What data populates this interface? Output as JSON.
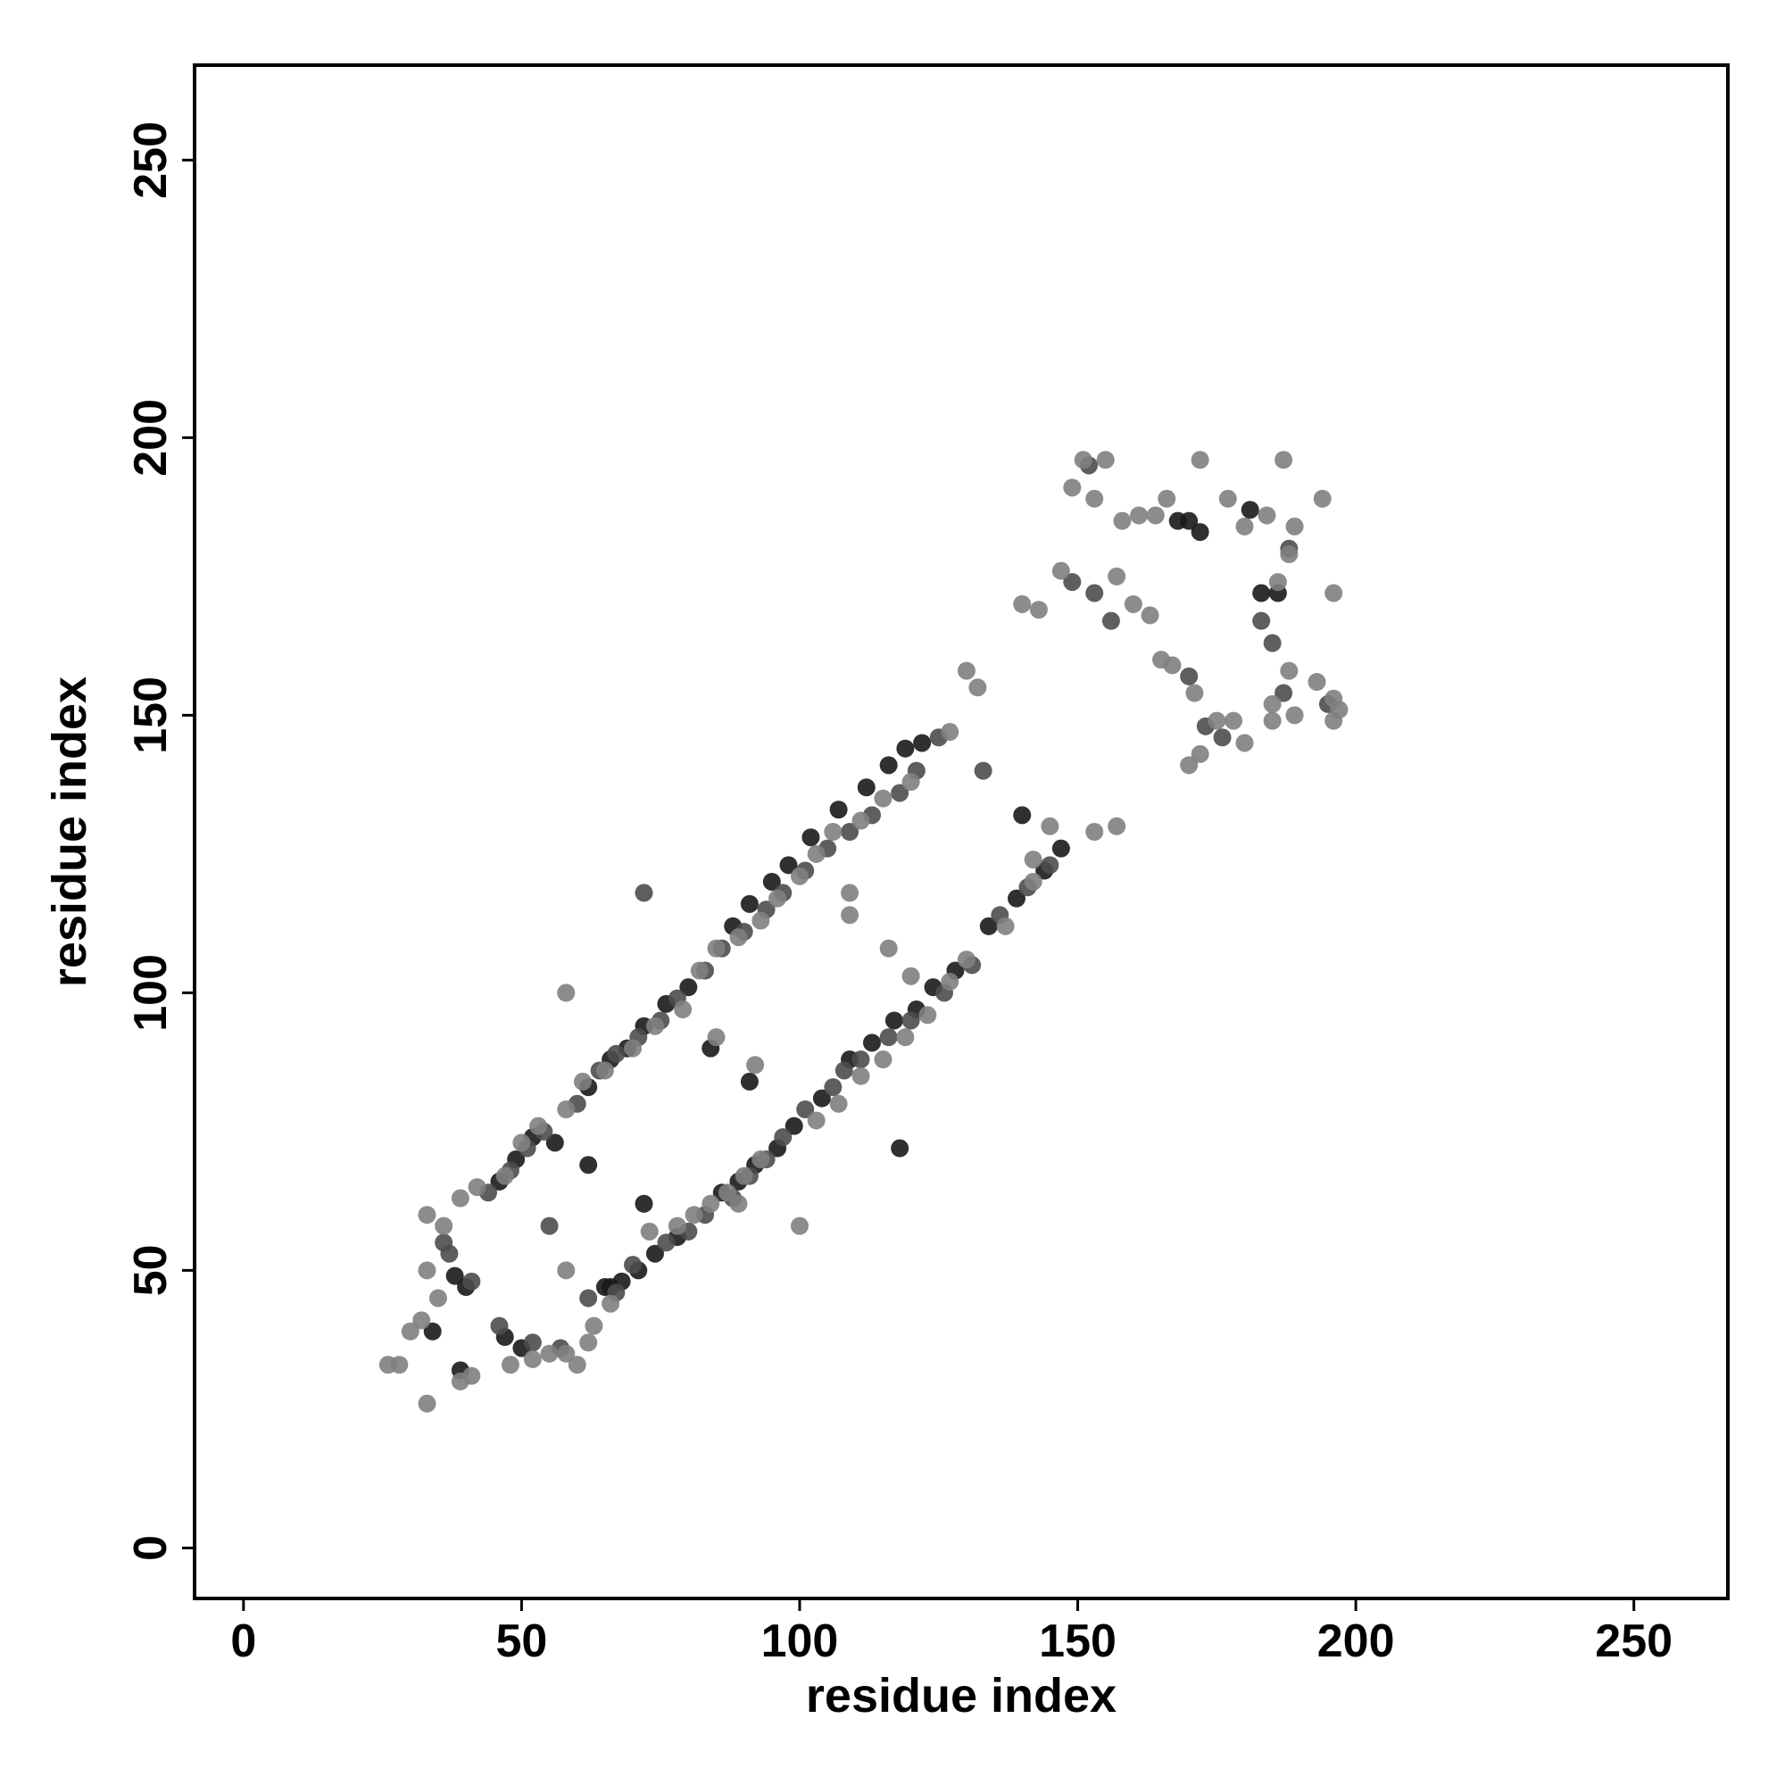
{
  "chart_data": {
    "type": "scatter",
    "xlabel": "residue index",
    "ylabel": "residue index",
    "xlim": [
      -8.8,
      266.9
    ],
    "ylim": [
      -9.1,
      267.1
    ],
    "xticks": [
      0,
      50,
      100,
      150,
      200,
      250
    ],
    "yticks": [
      0,
      50,
      100,
      150,
      200,
      250
    ],
    "series": [
      {
        "color": "#1a1a1a",
        "x": [
          46,
          49,
          52,
          56,
          62,
          66,
          69,
          72,
          76,
          80,
          88,
          91,
          95,
          98,
          102,
          107,
          112,
          116,
          119,
          122,
          66,
          68,
          71,
          74,
          78,
          86,
          89,
          92,
          96,
          99,
          104,
          109,
          113,
          117,
          121,
          124,
          128,
          134,
          139,
          144,
          147,
          34,
          39,
          40,
          38,
          47,
          50,
          65,
          170,
          172,
          181,
          183,
          186,
          168,
          140,
          118,
          91,
          84,
          72,
          62
        ],
        "y": [
          66,
          70,
          74,
          73,
          83,
          88,
          90,
          94,
          98,
          101,
          112,
          116,
          120,
          123,
          128,
          133,
          137,
          141,
          144,
          145,
          47,
          48,
          50,
          53,
          56,
          64,
          66,
          69,
          72,
          76,
          81,
          88,
          91,
          95,
          97,
          101,
          104,
          112,
          117,
          122,
          126,
          39,
          32,
          47,
          49,
          38,
          36,
          47,
          185,
          183,
          187,
          172,
          172,
          185,
          132,
          72,
          84,
          90,
          62,
          69
        ]
      },
      {
        "color": "#4d4d4d",
        "x": [
          44,
          48,
          51,
          54,
          60,
          64,
          67,
          71,
          75,
          78,
          83,
          86,
          90,
          94,
          97,
          101,
          105,
          109,
          113,
          118,
          121,
          125,
          62,
          67,
          70,
          76,
          80,
          83,
          88,
          91,
          94,
          97,
          101,
          106,
          108,
          111,
          116,
          120,
          126,
          131,
          136,
          141,
          145,
          37,
          36,
          41,
          46,
          52,
          57,
          55,
          149,
          153,
          156,
          170,
          173,
          176,
          183,
          185,
          188,
          187,
          195,
          133,
          72,
          152
        ],
        "y": [
          64,
          68,
          72,
          75,
          80,
          86,
          89,
          92,
          95,
          99,
          104,
          108,
          111,
          115,
          118,
          122,
          126,
          129,
          132,
          136,
          140,
          146,
          45,
          46,
          51,
          55,
          57,
          60,
          63,
          67,
          70,
          74,
          79,
          83,
          86,
          88,
          92,
          95,
          100,
          105,
          114,
          119,
          123,
          53,
          55,
          48,
          40,
          37,
          36,
          58,
          174,
          172,
          167,
          157,
          148,
          146,
          167,
          163,
          180,
          154,
          152,
          140,
          118,
          195
        ]
      },
      {
        "color": "#808080",
        "x": [
          33,
          36,
          39,
          42,
          47,
          50,
          53,
          58,
          61,
          65,
          70,
          74,
          79,
          82,
          85,
          89,
          93,
          96,
          100,
          103,
          106,
          111,
          115,
          120,
          127,
          130,
          132,
          58,
          63,
          66,
          73,
          78,
          81,
          84,
          87,
          90,
          93,
          103,
          107,
          111,
          115,
          119,
          123,
          127,
          130,
          137,
          142,
          26,
          28,
          30,
          32,
          33,
          33,
          35,
          39,
          41,
          48,
          52,
          55,
          60,
          62,
          58,
          58,
          100,
          116,
          109,
          109,
          85,
          89,
          92,
          120,
          145,
          153,
          157,
          142,
          140,
          143,
          147,
          149,
          151,
          153,
          155,
          158,
          161,
          157,
          160,
          163,
          165,
          167,
          170,
          172,
          175,
          178,
          180,
          177,
          184,
          189,
          186,
          188,
          185,
          187,
          194,
          193,
          196,
          196,
          197,
          196,
          185,
          180,
          189,
          188,
          164,
          171,
          172,
          166
        ],
        "y": [
          60,
          58,
          63,
          65,
          67,
          73,
          76,
          79,
          84,
          86,
          90,
          94,
          97,
          104,
          108,
          110,
          113,
          117,
          121,
          125,
          129,
          131,
          135,
          138,
          147,
          158,
          155,
          35,
          40,
          44,
          57,
          58,
          60,
          62,
          64,
          67,
          70,
          77,
          80,
          85,
          88,
          92,
          96,
          102,
          106,
          112,
          120,
          33,
          33,
          39,
          41,
          26,
          50,
          45,
          30,
          31,
          33,
          34,
          35,
          33,
          37,
          100,
          50,
          58,
          108,
          118,
          114,
          92,
          62,
          87,
          103,
          130,
          129,
          130,
          124,
          170,
          169,
          176,
          191,
          196,
          189,
          196,
          185,
          186,
          175,
          170,
          168,
          160,
          159,
          141,
          143,
          149,
          149,
          184,
          189,
          186,
          184,
          174,
          158,
          152,
          196,
          189,
          156,
          153,
          149,
          151,
          172,
          149,
          145,
          150,
          179,
          186,
          154,
          196,
          189
        ]
      }
    ]
  }
}
